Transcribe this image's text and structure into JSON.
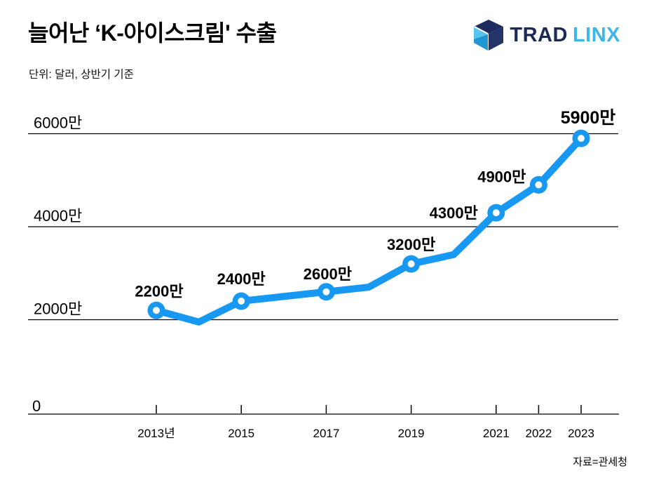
{
  "header": {
    "title": "늘어난 ‘K-아이스크림' 수출",
    "subtitle": "단위: 달러, 상반기 기준"
  },
  "logo": {
    "icon": "cube-icon",
    "brand_primary": "TRAD",
    "brand_secondary": "LINX",
    "color_primary": "#1b2a55",
    "color_secondary": "#3db6e9",
    "cube_colors": {
      "top": "#1e2b5e",
      "right": "#243469",
      "left_upper": "#57c4ef",
      "left_lower": "#2196d3"
    }
  },
  "footer": {
    "source": "자료=관세청"
  },
  "chart_data": {
    "type": "line",
    "title": "늘어난 ‘K-아이스크림' 수출",
    "unit_label": "단위: 달러, 상반기 기준",
    "xlabel": "",
    "ylabel": "",
    "x_years": [
      2013,
      2014,
      2015,
      2016,
      2017,
      2018,
      2019,
      2020,
      2021,
      2022,
      2023
    ],
    "values": [
      2200,
      1950,
      2400,
      2500,
      2600,
      2700,
      3200,
      3400,
      4300,
      4900,
      5900
    ],
    "labeled_points": [
      {
        "year": 2013,
        "value": 2200,
        "label": "2200만"
      },
      {
        "year": 2015,
        "value": 2400,
        "label": "2400만"
      },
      {
        "year": 2017,
        "value": 2600,
        "label": "2600만"
      },
      {
        "year": 2019,
        "value": 3200,
        "label": "3200만"
      },
      {
        "year": 2021,
        "value": 4300,
        "label": "4300만"
      },
      {
        "year": 2022,
        "value": 4900,
        "label": "4900만"
      },
      {
        "year": 2023,
        "value": 5900,
        "label": "5900만"
      }
    ],
    "x_tick_labels": [
      {
        "year": 2013,
        "label": "2013년"
      },
      {
        "year": 2015,
        "label": "2015"
      },
      {
        "year": 2017,
        "label": "2017"
      },
      {
        "year": 2019,
        "label": "2019"
      },
      {
        "year": 2021,
        "label": "2021"
      },
      {
        "year": 2022,
        "label": "2022"
      },
      {
        "year": 2023,
        "label": "2023"
      }
    ],
    "y_gridlines": [
      {
        "value": 2000,
        "label": "2000만"
      },
      {
        "value": 4000,
        "label": "4000만"
      },
      {
        "value": 6000,
        "label": "6000만"
      }
    ],
    "y_zero_label": "0",
    "ylim": [
      0,
      6300
    ],
    "grid": "horizontal-only",
    "legend": "none",
    "line_color": "#1798f2",
    "marker_style": "open-circle",
    "source": "자료=관세청"
  }
}
